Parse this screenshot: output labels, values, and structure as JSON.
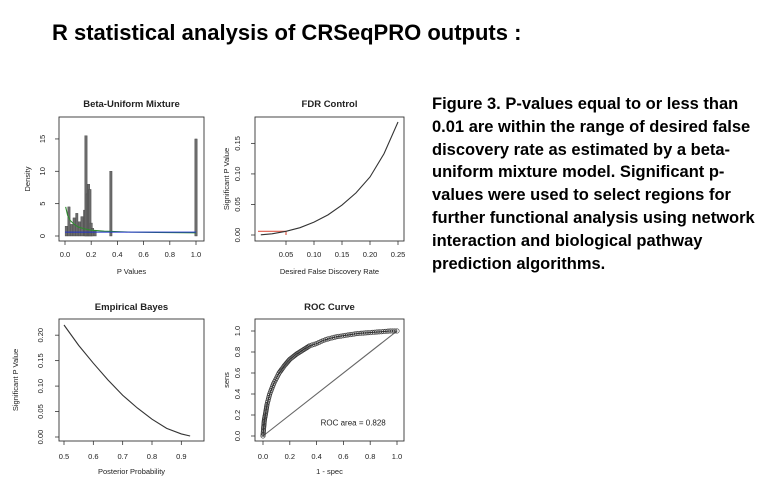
{
  "page": {
    "title": "R statistical analysis of CRSeqPRO outputs :",
    "caption": "Figure 3.  P-values equal to or less than 0.01 are within the range of desired false discovery rate as estimated by a beta-uniform mixture model.  Significant p-values were used to select regions for further functional analysis using network interaction and biological pathway prediction algorithms."
  },
  "chart_data": [
    {
      "type": "bar",
      "title": "Beta-Uniform Mixture",
      "xlabel": "P Values",
      "ylabel": "Density",
      "xlim": [
        0,
        1
      ],
      "ylim": [
        0,
        17
      ],
      "xticks": [
        "0.0",
        "0.2",
        "0.4",
        "0.6",
        "0.8",
        "1.0"
      ],
      "yticks": [
        "0",
        "5",
        "10",
        "15"
      ],
      "histogram": {
        "x": [
          0.01,
          0.03,
          0.05,
          0.07,
          0.09,
          0.11,
          0.13,
          0.15,
          0.16,
          0.17,
          0.18,
          0.19,
          0.2,
          0.21,
          0.23,
          0.35,
          1.0
        ],
        "values": [
          1.5,
          4.5,
          1.8,
          2.8,
          3.5,
          2.2,
          3.0,
          4.0,
          15.5,
          6.5,
          8.0,
          7.2,
          2.0,
          1.2,
          0.8,
          10.0,
          15.0
        ]
      },
      "series": [
        {
          "color": "#2e8b2e",
          "x": [
            0.005,
            0.02,
            0.04,
            0.07,
            0.1,
            0.15,
            0.2,
            0.3,
            0.5,
            0.7,
            1.0
          ],
          "y": [
            4.5,
            3.2,
            2.4,
            1.8,
            1.4,
            1.1,
            0.9,
            0.75,
            0.6,
            0.55,
            0.5
          ]
        },
        {
          "color": "#2233cc",
          "x": [
            0,
            1
          ],
          "y": [
            0.6,
            0.6
          ]
        }
      ],
      "grid": false
    },
    {
      "type": "line",
      "title": "FDR Control",
      "xlabel": "Desired False Discovery Rate",
      "ylabel": "Significant P Value",
      "xlim": [
        0,
        0.25
      ],
      "ylim": [
        0,
        0.185
      ],
      "xticks": [
        "0.05",
        "0.10",
        "0.15",
        "0.20",
        "0.25"
      ],
      "yticks": [
        "0.00",
        "0.05",
        "0.10",
        "0.15"
      ],
      "series": [
        {
          "color": "#333333",
          "x": [
            0.005,
            0.025,
            0.05,
            0.075,
            0.1,
            0.125,
            0.15,
            0.175,
            0.2,
            0.225,
            0.25
          ],
          "y": [
            0.0003,
            0.002,
            0.006,
            0.012,
            0.021,
            0.033,
            0.049,
            0.069,
            0.095,
            0.133,
            0.185
          ]
        }
      ],
      "highlight": {
        "color": "#e05a4a",
        "fdr": 0.05,
        "p": 0.006
      },
      "grid": false
    },
    {
      "type": "line",
      "title": "Empirical Bayes",
      "xlabel": "Posterior Probability",
      "ylabel": "Significant P Value",
      "xlim": [
        0.5,
        0.95
      ],
      "ylim": [
        0,
        0.22
      ],
      "xticks": [
        "0.5",
        "0.6",
        "0.7",
        "0.8",
        "0.9"
      ],
      "yticks": [
        "0.00",
        "0.05",
        "0.10",
        "0.15",
        "0.20"
      ],
      "series": [
        {
          "color": "#333333",
          "x": [
            0.5,
            0.55,
            0.6,
            0.65,
            0.7,
            0.75,
            0.8,
            0.85,
            0.9,
            0.93
          ],
          "y": [
            0.22,
            0.18,
            0.145,
            0.112,
            0.082,
            0.057,
            0.035,
            0.017,
            0.006,
            0.002
          ]
        }
      ],
      "grid": false
    },
    {
      "type": "scatter",
      "title": "ROC Curve",
      "xlabel": "1 - spec",
      "ylabel": "sens",
      "xlim": [
        0,
        1
      ],
      "ylim": [
        0,
        1
      ],
      "xticks": [
        "0.0",
        "0.2",
        "0.4",
        "0.6",
        "0.8",
        "1.0"
      ],
      "yticks": [
        "0.0",
        "0.2",
        "0.4",
        "0.6",
        "0.8",
        "1.0"
      ],
      "annotation": "ROC area = 0.828",
      "series": [
        {
          "color": "#333333",
          "x": [
            0,
            0.005,
            0.01,
            0.02,
            0.03,
            0.05,
            0.08,
            0.12,
            0.16,
            0.2,
            0.25,
            0.3,
            0.35,
            0.4,
            0.45,
            0.5,
            0.55,
            0.6,
            0.65,
            0.7,
            0.75,
            0.8,
            0.85,
            0.9,
            0.95,
            1.0
          ],
          "y": [
            0,
            0.08,
            0.15,
            0.22,
            0.3,
            0.4,
            0.5,
            0.6,
            0.67,
            0.73,
            0.78,
            0.82,
            0.86,
            0.88,
            0.91,
            0.93,
            0.945,
            0.955,
            0.965,
            0.975,
            0.98,
            0.985,
            0.99,
            0.995,
            1.0,
            1.0
          ]
        },
        {
          "color": "#666666",
          "x": [
            0,
            1
          ],
          "y": [
            0,
            1
          ]
        }
      ],
      "grid": false
    }
  ]
}
